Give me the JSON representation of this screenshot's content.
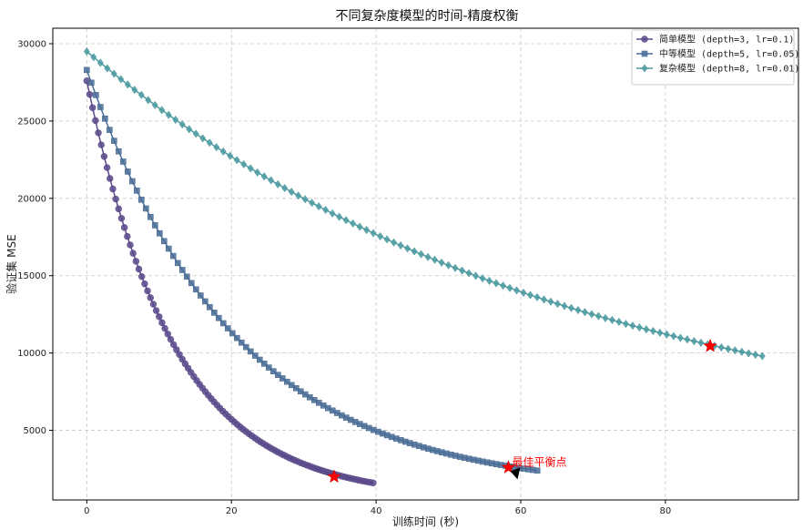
{
  "chart_data": {
    "type": "line",
    "title": "不同复杂度模型的时间-精度权衡",
    "xlabel": "训练时间 (秒)",
    "ylabel": "验证集 MSE",
    "xlim": [
      -4.7,
      98.4
    ],
    "ylim": [
      500,
      31000
    ],
    "xticks": [
      0,
      20,
      40,
      60,
      80
    ],
    "yticks": [
      5000,
      10000,
      15000,
      20000,
      25000,
      30000
    ],
    "grid": true,
    "legend_position": "top-right",
    "series": [
      {
        "name": "简单模型 (depth=3, lr=0.1)",
        "color": "#5b4a8b",
        "marker": "circle",
        "t_start": 0.0,
        "t_end": 39.6,
        "y_start": 27600,
        "y_end": 1600,
        "y_floor": 600,
        "tau": 10.2,
        "n_points": 100,
        "points_sample": [
          [
            0,
            27600
          ],
          [
            5,
            13900
          ],
          [
            10,
            8400
          ],
          [
            20,
            4300
          ],
          [
            30,
            2500
          ],
          [
            39.6,
            1600
          ]
        ]
      },
      {
        "name": "中等模型 (depth=5, lr=0.05)",
        "color": "#4a6d96",
        "marker": "square",
        "t_start": 0.0,
        "t_end": 62.3,
        "y_start": 28300,
        "y_end": 2400,
        "y_floor": 1100,
        "tau": 15.5,
        "n_points": 100,
        "points_sample": [
          [
            0,
            28300
          ],
          [
            10,
            13800
          ],
          [
            20,
            7800
          ],
          [
            30,
            5200
          ],
          [
            40,
            3900
          ],
          [
            50,
            3000
          ],
          [
            62.3,
            2400
          ]
        ]
      },
      {
        "name": "复杂模型 (depth=8, lr=0.01)",
        "color": "#4b9aa0",
        "marker": "diamond",
        "t_start": 0.0,
        "t_end": 93.4,
        "y_start": 29500,
        "y_end": 9800,
        "y_floor": 3500,
        "tau": 68,
        "n_points": 100,
        "points_sample": [
          [
            0,
            29500
          ],
          [
            20,
            21900
          ],
          [
            40,
            16400
          ],
          [
            60,
            13100
          ],
          [
            80,
            10900
          ],
          [
            93.4,
            9800
          ]
        ]
      }
    ],
    "best_points": [
      {
        "series": "简单模型 (depth=3, lr=0.1)",
        "x": 34.2,
        "y": 2000
      },
      {
        "series": "中等模型 (depth=5, lr=0.05)",
        "x": 58.3,
        "y": 2600
      },
      {
        "series": "复杂模型 (depth=8, lr=0.01)",
        "x": 86.2,
        "y": 10450
      }
    ],
    "annotation": {
      "text": "最佳平衡点",
      "x": 58.3,
      "y": 2600,
      "color": "#ff0000"
    }
  }
}
